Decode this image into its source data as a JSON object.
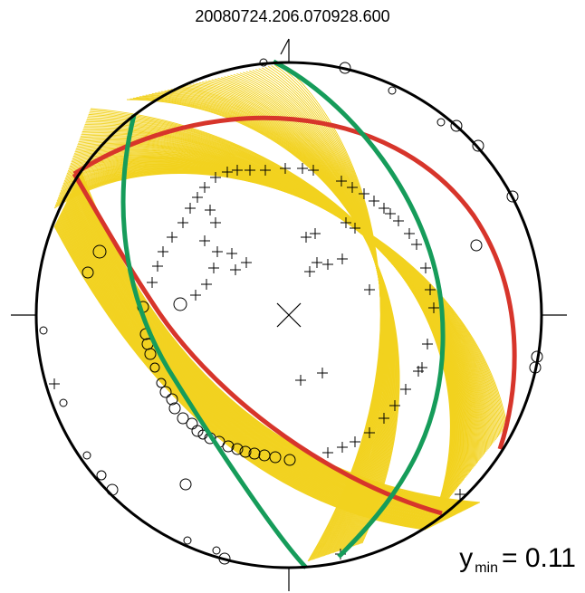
{
  "title": "20080724.206.070928.600",
  "ymin": {
    "symbol": "y",
    "subscript": "min",
    "value": "= 0.11"
  },
  "colors": {
    "fault_planes": "#f2d21f",
    "best_fit_plane_red": "#d7352b",
    "auxiliary_plane_green": "#169c5a",
    "axes": "#000000"
  }
}
